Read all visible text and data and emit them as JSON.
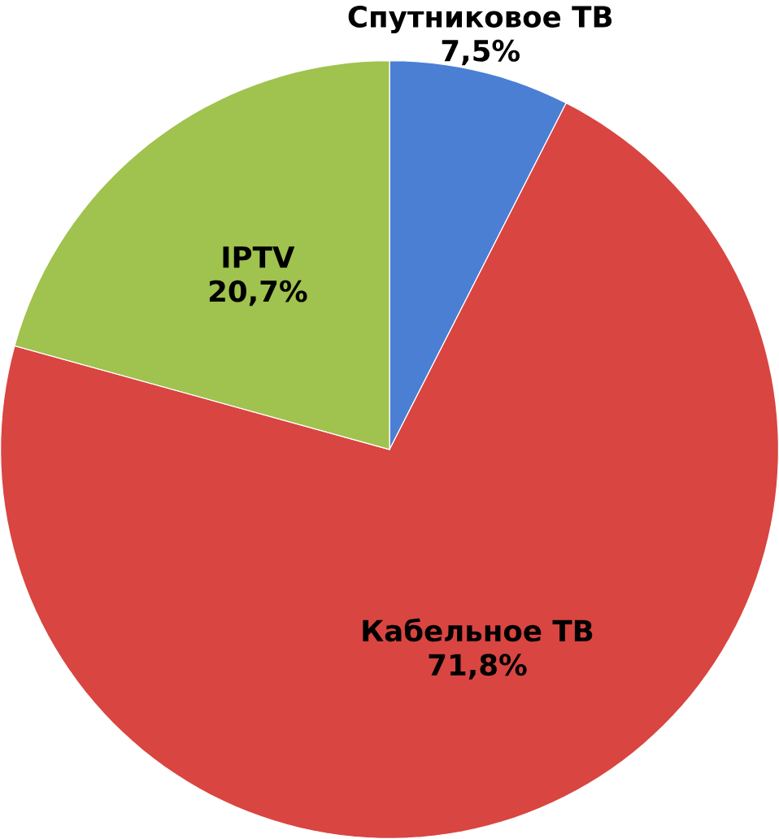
{
  "chart_data": {
    "type": "pie",
    "categories": [
      "Спутниковое ТВ",
      "Кабельное ТВ",
      "IPTV"
    ],
    "values": [
      7.5,
      71.8,
      20.7
    ],
    "value_labels": [
      "7,5%",
      "71,8%",
      "20,7%"
    ],
    "colors": [
      "#4a7fd4",
      "#d94541",
      "#a0c24e"
    ]
  }
}
